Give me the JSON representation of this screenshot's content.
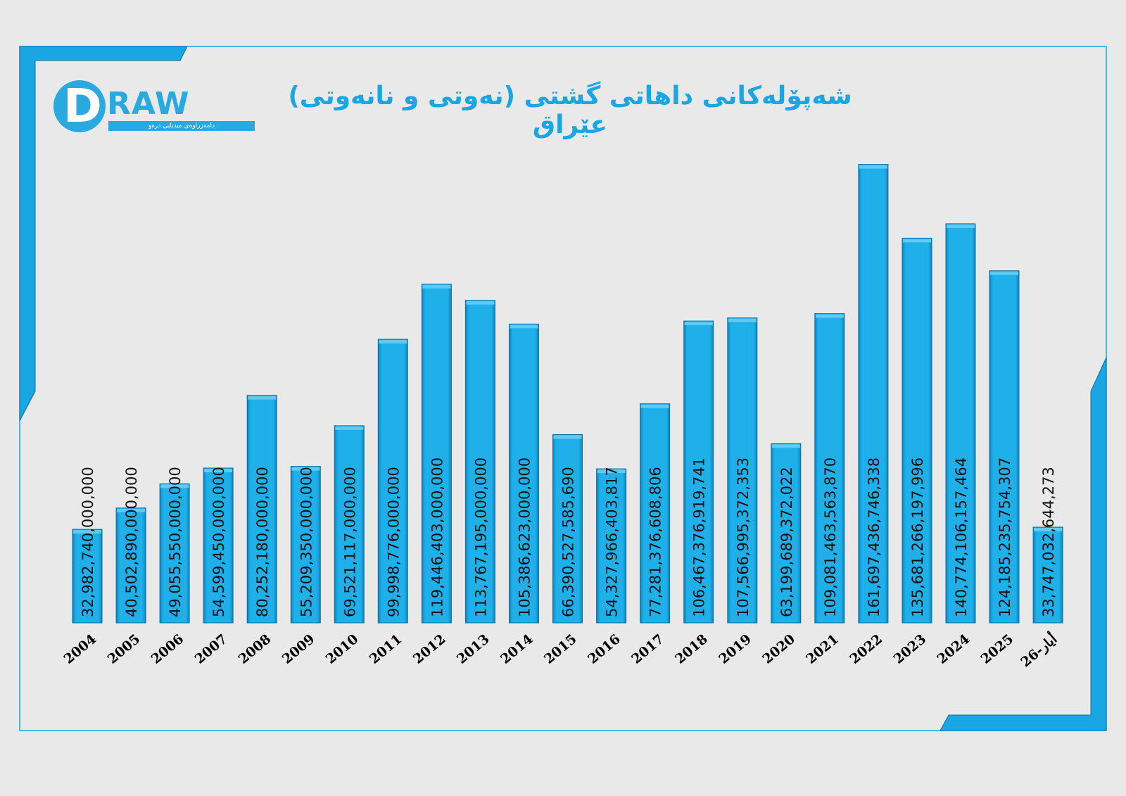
{
  "colors": {
    "background": "#e9e9ea",
    "frame_blue": "#1aa6e2",
    "bar_fill": "#1aa6e2",
    "bar_edge": "#0b6f9f",
    "label_text": "#111111",
    "title_text": "#1aa6e2"
  },
  "logo": {
    "letter": "D",
    "word": "RAW",
    "tagline": "دامەزراوەی میدیایی درەو"
  },
  "chart_data": {
    "type": "bar",
    "title": "شەپۆلەکانی داهاتی گشتی (نەوتی و نانەوتی) عێراق",
    "xlabel": "",
    "ylabel": "",
    "ylim": [
      0,
      175000000000000
    ],
    "grid": false,
    "legend": "none",
    "categories": [
      "2004",
      "2005",
      "2006",
      "2007",
      "2008",
      "2009",
      "2010",
      "2011",
      "2012",
      "2013",
      "2014",
      "2015",
      "2016",
      "2017",
      "2018",
      "2019",
      "2020",
      "2021",
      "2022",
      "2023",
      "2024",
      "2025",
      "26-أيار"
    ],
    "values": [
      32982740000000,
      40502890000000,
      49055550000000,
      54599450000000,
      80252180000000,
      55209350000000,
      69521117000000,
      99998776000000,
      119446403000000,
      113767195000000,
      105386623000000,
      66390527585690,
      54327966403817,
      77281376608806,
      106467376919741,
      107566995372353,
      63199689372022,
      109081463563870,
      161697436746338,
      135681266197996,
      140774106157464,
      124185235754307,
      33747032644273
    ],
    "value_labels": [
      "32,982,740,000,000",
      "40,502,890,000,000",
      "49,055,550,000,000",
      "54,599,450,000,000",
      "80,252,180,000,000",
      "55,209,350,000,000",
      "69,521,117,000,000",
      "99,998,776,000,000",
      "119,446,403,000,000",
      "113,767,195,000,000",
      "105,386,623,000,000",
      "66,390,527,585,690",
      "54,327,966,403,817",
      "77,281,376,608,806",
      "106,467,376,919,741",
      "107,566,995,372,353",
      "63,199,689,372,022",
      "109,081,463,563,870",
      "161,697,436,746,338",
      "135,681,266,197,996",
      "140,774,106,157,464",
      "124,185,235,754,307",
      "33,747,032,644,273"
    ]
  }
}
